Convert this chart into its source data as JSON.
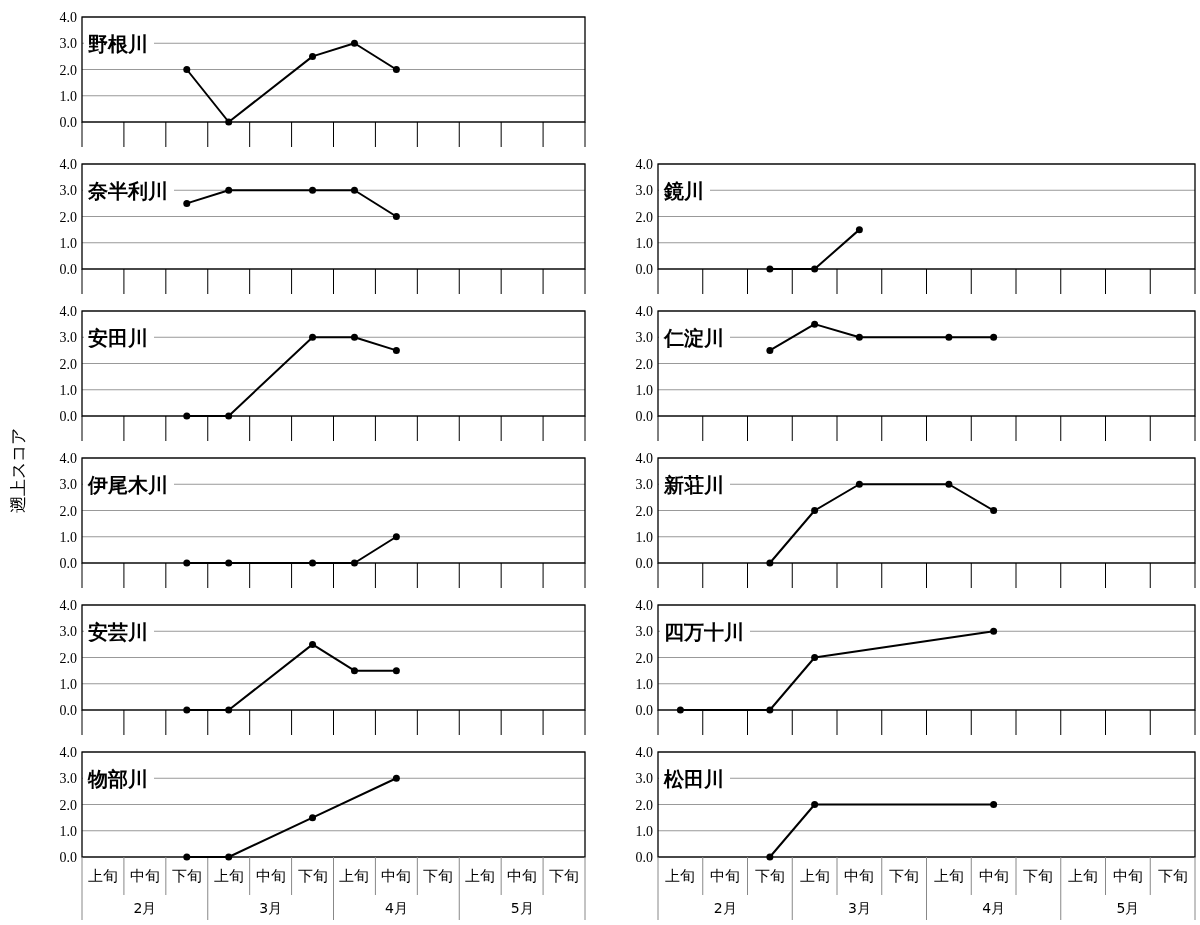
{
  "chart_data": [
    {
      "type": "line",
      "title": "野根川",
      "categories": [
        null,
        null,
        null,
        null,
        null,
        null,
        null,
        null,
        null,
        null,
        null,
        null
      ],
      "series": [
        {
          "color": "#000000",
          "values": [
            null,
            null,
            2,
            0,
            null,
            2.5,
            3,
            2,
            null,
            null,
            null,
            null
          ]
        }
      ],
      "ylim": [
        0,
        4
      ],
      "yticks": [
        {
          "value": 0,
          "label": "0.0"
        },
        {
          "value": 1,
          "label": "1.0"
        },
        {
          "value": 2,
          "label": "2.0"
        },
        {
          "value": 3,
          "label": "3.0"
        },
        {
          "value": 4,
          "label": "4.0"
        }
      ],
      "grid": "y",
      "marker": "circle",
      "tick_labels": "y"
    },
    {
      "type": "line",
      "title": "奈半利川",
      "categories": [
        null,
        null,
        null,
        null,
        null,
        null,
        null,
        null,
        null,
        null,
        null,
        null
      ],
      "series": [
        {
          "color": "#000000",
          "values": [
            null,
            null,
            2.5,
            3,
            null,
            3,
            3,
            2,
            null,
            null,
            null,
            null
          ]
        }
      ],
      "ylim": [
        0,
        4
      ],
      "yticks": [
        {
          "value": 0,
          "label": "0.0"
        },
        {
          "value": 1,
          "label": "1.0"
        },
        {
          "value": 2,
          "label": "2.0"
        },
        {
          "value": 3,
          "label": "3.0"
        },
        {
          "value": 4,
          "label": "4.0"
        }
      ],
      "grid": "y",
      "marker": "circle",
      "tick_labels": "y"
    },
    {
      "type": "line",
      "title": "安田川",
      "categories": [
        null,
        null,
        null,
        null,
        null,
        null,
        null,
        null,
        null,
        null,
        null,
        null
      ],
      "series": [
        {
          "color": "#000000",
          "values": [
            null,
            null,
            0,
            0,
            null,
            3,
            3,
            2.5,
            null,
            null,
            null,
            null
          ]
        }
      ],
      "ylim": [
        0,
        4
      ],
      "yticks": [
        {
          "value": 0,
          "label": "0.0"
        },
        {
          "value": 1,
          "label": "1.0"
        },
        {
          "value": 2,
          "label": "2.0"
        },
        {
          "value": 3,
          "label": "3.0"
        },
        {
          "value": 4,
          "label": "4.0"
        }
      ],
      "grid": "y",
      "marker": "circle",
      "tick_labels": "y"
    },
    {
      "type": "line",
      "title": "伊尾木川",
      "ylabel": "遡上スコア",
      "categories": [
        null,
        null,
        null,
        null,
        null,
        null,
        null,
        null,
        null,
        null,
        null,
        null
      ],
      "series": [
        {
          "color": "#000000",
          "values": [
            null,
            null,
            0,
            0,
            null,
            0,
            0,
            1,
            null,
            null,
            null,
            null
          ]
        }
      ],
      "ylim": [
        0,
        4
      ],
      "yticks": [
        {
          "value": 0,
          "label": "0.0"
        },
        {
          "value": 1,
          "label": "1.0"
        },
        {
          "value": 2,
          "label": "2.0"
        },
        {
          "value": 3,
          "label": "3.0"
        },
        {
          "value": 4,
          "label": "4.0"
        }
      ],
      "grid": "y",
      "marker": "circle",
      "tick_labels": "y"
    },
    {
      "type": "line",
      "title": "安芸川",
      "categories": [
        null,
        null,
        null,
        null,
        null,
        null,
        null,
        null,
        null,
        null,
        null,
        null
      ],
      "series": [
        {
          "color": "#000000",
          "values": [
            null,
            null,
            0,
            0,
            null,
            2.5,
            1.5,
            1.5,
            null,
            null,
            null,
            null
          ]
        }
      ],
      "ylim": [
        0,
        4
      ],
      "yticks": [
        {
          "value": 0,
          "label": "0.0"
        },
        {
          "value": 1,
          "label": "1.0"
        },
        {
          "value": 2,
          "label": "2.0"
        },
        {
          "value": 3,
          "label": "3.0"
        },
        {
          "value": 4,
          "label": "4.0"
        }
      ],
      "grid": "y",
      "marker": "circle",
      "tick_labels": "y"
    },
    {
      "type": "line",
      "title": "物部川",
      "categories": [
        "上旬",
        "中旬",
        "下旬",
        "上旬",
        "中旬",
        "下旬",
        "上旬",
        "中旬",
        "下旬",
        "上旬",
        "中旬",
        "下旬"
      ],
      "series": [
        {
          "color": "#000000",
          "values": [
            null,
            null,
            0,
            0,
            null,
            1.5,
            null,
            3,
            null,
            null,
            null,
            null
          ]
        }
      ],
      "ylim": [
        0,
        4
      ],
      "yticks": [
        {
          "value": 0,
          "label": "0.0"
        },
        {
          "value": 1,
          "label": "1.0"
        },
        {
          "value": 2,
          "label": "2.0"
        },
        {
          "value": 3,
          "label": "3.0"
        },
        {
          "value": 4,
          "label": "4.0"
        }
      ],
      "grid": "y",
      "marker": "circle",
      "annotations": [
        "2月",
        "3月",
        "4月",
        "5月"
      ]
    },
    {
      "type": "line",
      "title": "鏡川",
      "categories": [
        null,
        null,
        null,
        null,
        null,
        null,
        null,
        null,
        null,
        null,
        null,
        null
      ],
      "series": [
        {
          "color": "#000000",
          "values": [
            null,
            null,
            0,
            0,
            1.5,
            null,
            null,
            null,
            null,
            null,
            null,
            null
          ]
        }
      ],
      "ylim": [
        0,
        4
      ],
      "yticks": [
        {
          "value": 0,
          "label": "0.0"
        },
        {
          "value": 1,
          "label": "1.0"
        },
        {
          "value": 2,
          "label": "2.0"
        },
        {
          "value": 3,
          "label": "3.0"
        },
        {
          "value": 4,
          "label": "4.0"
        }
      ],
      "grid": "y",
      "marker": "circle",
      "tick_labels": "y"
    },
    {
      "type": "line",
      "title": "仁淀川",
      "categories": [
        null,
        null,
        null,
        null,
        null,
        null,
        null,
        null,
        null,
        null,
        null,
        null
      ],
      "series": [
        {
          "color": "#000000",
          "values": [
            null,
            null,
            2.5,
            3.5,
            3,
            null,
            3,
            3,
            null,
            null,
            null,
            null
          ]
        }
      ],
      "ylim": [
        0,
        4
      ],
      "yticks": [
        {
          "value": 0,
          "label": "0.0"
        },
        {
          "value": 1,
          "label": "1.0"
        },
        {
          "value": 2,
          "label": "2.0"
        },
        {
          "value": 3,
          "label": "3.0"
        },
        {
          "value": 4,
          "label": "4.0"
        }
      ],
      "grid": "y",
      "marker": "circle",
      "tick_labels": "y"
    },
    {
      "type": "line",
      "title": "新荘川",
      "categories": [
        null,
        null,
        null,
        null,
        null,
        null,
        null,
        null,
        null,
        null,
        null,
        null
      ],
      "series": [
        {
          "color": "#000000",
          "values": [
            null,
            null,
            0,
            2,
            3,
            null,
            3,
            2,
            null,
            null,
            null,
            null
          ]
        }
      ],
      "ylim": [
        0,
        4
      ],
      "yticks": [
        {
          "value": 0,
          "label": "0.0"
        },
        {
          "value": 1,
          "label": "1.0"
        },
        {
          "value": 2,
          "label": "2.0"
        },
        {
          "value": 3,
          "label": "3.0"
        },
        {
          "value": 4,
          "label": "4.0"
        }
      ],
      "grid": "y",
      "marker": "circle",
      "tick_labels": "y"
    },
    {
      "type": "line",
      "title": "四万十川",
      "categories": [
        null,
        null,
        null,
        null,
        null,
        null,
        null,
        null,
        null,
        null,
        null,
        null
      ],
      "series": [
        {
          "color": "#000000",
          "values": [
            0,
            null,
            0,
            2,
            null,
            null,
            null,
            3,
            null,
            null,
            null,
            null
          ]
        }
      ],
      "ylim": [
        0,
        4
      ],
      "yticks": [
        {
          "value": 0,
          "label": "0.0"
        },
        {
          "value": 1,
          "label": "1.0"
        },
        {
          "value": 2,
          "label": "2.0"
        },
        {
          "value": 3,
          "label": "3.0"
        },
        {
          "value": 4,
          "label": "4.0"
        }
      ],
      "grid": "y",
      "marker": "circle",
      "tick_labels": "y"
    },
    {
      "type": "line",
      "title": "松田川",
      "categories": [
        "上旬",
        "中旬",
        "下旬",
        "上旬",
        "中旬",
        "下旬",
        "上旬",
        "中旬",
        "下旬",
        "上旬",
        "中旬",
        "下旬"
      ],
      "series": [
        {
          "color": "#000000",
          "values": [
            null,
            null,
            0,
            2,
            null,
            null,
            null,
            2,
            null,
            null,
            null,
            null
          ]
        }
      ],
      "ylim": [
        0,
        4
      ],
      "yticks": [
        {
          "value": 0,
          "label": "0.0"
        },
        {
          "value": 1,
          "label": "1.0"
        },
        {
          "value": 2,
          "label": "2.0"
        },
        {
          "value": 3,
          "label": "3.0"
        },
        {
          "value": 4,
          "label": "4.0"
        }
      ],
      "grid": "y",
      "marker": "circle",
      "annotations": [
        "2月",
        "3月",
        "4月",
        "5月"
      ]
    }
  ]
}
